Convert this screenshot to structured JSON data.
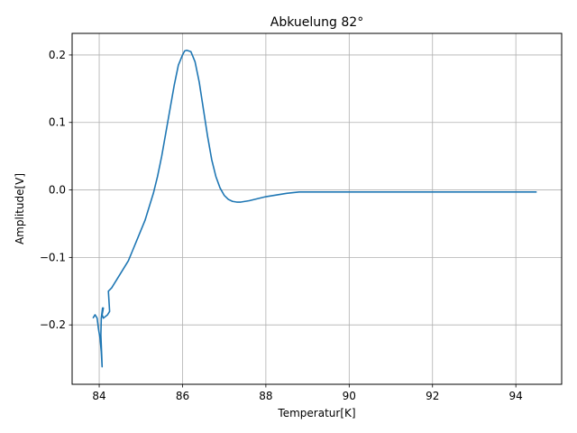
{
  "chart_data": {
    "type": "line",
    "title": "Abkuelung 82°",
    "xlabel": "Temperatur[K]",
    "ylabel": "Amplitude[V]",
    "xlim": [
      83.35,
      95.1
    ],
    "ylim": [
      -0.288,
      0.232
    ],
    "x_ticks": [
      84,
      86,
      88,
      90,
      92,
      94
    ],
    "x_tick_labels": [
      "84",
      "86",
      "88",
      "90",
      "92",
      "94"
    ],
    "y_ticks": [
      -0.2,
      -0.1,
      0.0,
      0.1,
      0.2
    ],
    "y_tick_labels": [
      "−0.2",
      "−0.1",
      "0.0",
      "0.1",
      "0.2"
    ],
    "grid": true,
    "line_color": "#1f77b4",
    "series": [
      {
        "x": [
          83.85,
          83.9,
          83.95,
          83.98,
          84.02,
          84.05,
          84.07,
          84.06,
          84.04,
          84.05,
          84.08,
          84.1,
          84.07,
          84.1,
          84.2,
          84.25,
          84.22,
          84.3,
          84.4,
          84.5,
          84.6,
          84.7,
          84.8,
          84.9,
          85.0,
          85.1,
          85.2,
          85.3,
          85.4,
          85.5,
          85.6,
          85.7,
          85.8,
          85.9,
          86.0,
          86.05,
          86.1,
          86.2,
          86.3,
          86.4,
          86.5,
          86.6,
          86.7,
          86.8,
          86.9,
          87.0,
          87.1,
          87.2,
          87.3,
          87.4,
          87.5,
          87.6,
          87.8,
          88.0,
          88.2,
          88.5,
          88.8,
          89.0,
          89.5,
          90.0,
          91.0,
          92.0,
          93.0,
          94.0,
          94.5
        ],
        "y": [
          -0.19,
          -0.185,
          -0.19,
          -0.205,
          -0.22,
          -0.24,
          -0.262,
          -0.245,
          -0.215,
          -0.19,
          -0.175,
          -0.175,
          -0.185,
          -0.19,
          -0.185,
          -0.18,
          -0.15,
          -0.145,
          -0.135,
          -0.125,
          -0.115,
          -0.105,
          -0.09,
          -0.075,
          -0.06,
          -0.045,
          -0.025,
          -0.005,
          0.02,
          0.05,
          0.085,
          0.12,
          0.155,
          0.185,
          0.2,
          0.206,
          0.207,
          0.205,
          0.19,
          0.16,
          0.12,
          0.08,
          0.045,
          0.02,
          0.003,
          -0.008,
          -0.014,
          -0.017,
          -0.018,
          -0.018,
          -0.017,
          -0.016,
          -0.013,
          -0.01,
          -0.008,
          -0.005,
          -0.003,
          -0.003,
          -0.003,
          -0.003,
          -0.003,
          -0.003,
          -0.003,
          -0.003,
          -0.003
        ]
      }
    ]
  }
}
